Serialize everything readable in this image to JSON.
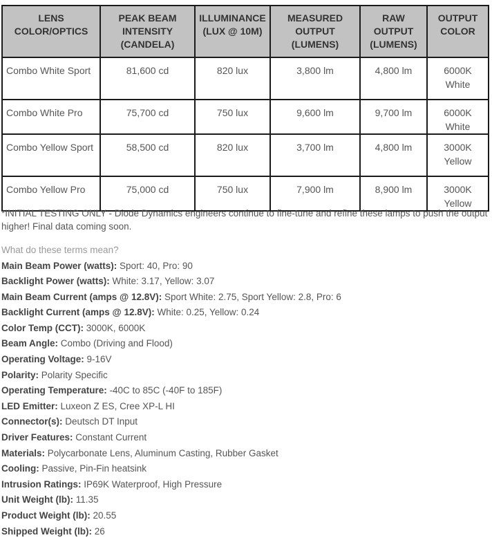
{
  "table": {
    "headers": [
      "LENS COLOR/OPTICS",
      "PEAK BEAM INTENSITY (CANDELA)",
      "ILLUMINANCE (LUX @ 10M)",
      "MEASURED OUTPUT (LUMENS)",
      "RAW OUTPUT (LUMENS)",
      "OUTPUT COLOR"
    ],
    "rows": [
      [
        "Combo White Sport",
        "81,600 cd",
        "820 lux",
        "3,800 lm",
        "4,800 lm",
        "6000K White"
      ],
      [
        "Combo White Pro",
        "75,700 cd",
        "750 lux",
        "9,600 lm",
        "9,700 lm",
        "6000K White"
      ],
      [
        "Combo Yellow Sport",
        "58,500 cd",
        "820 lux",
        "3,700 lm",
        "4,800 lm",
        "3000K Yellow"
      ],
      [
        "Combo Yellow Pro",
        "75,000 cd",
        "750 lux",
        "7,900 lm",
        "8,900 lm",
        "3000K Yellow"
      ]
    ]
  },
  "note": "*INITIAL TESTING ONLY - Diode Dynamics engineers continue to fine-tune and refine these lamps to push the output higher! Final data coming soon.",
  "terms_link": "What do these terms mean?",
  "specs": [
    {
      "label": "Main Beam Power (watts):",
      "value": " Sport: 40, Pro: 90"
    },
    {
      "label": "Backlight Power (watts):",
      "value": " White: 3.17, Yellow: 3.07"
    },
    {
      "label": "Main Beam Current (amps @ 12.8V):",
      "value": " Sport White: 2.75, Sport Yellow: 2.8, Pro: 6"
    },
    {
      "label": "Backlight Current (amps @ 12.8V):",
      "value": " White: 0.25, Yellow: 0.24"
    },
    {
      "label": "Color Temp (CCT):",
      "value": " 3000K, 6000K"
    },
    {
      "label": "Beam Angle:",
      "value": " Combo (Driving and Flood)"
    },
    {
      "label": "Operating Voltage:",
      "value": " 9-16V"
    },
    {
      "label": "Polarity:",
      "value": " Polarity Specific"
    },
    {
      "label": "Operating Temperature:",
      "value": " -40C to 85C (-40F to 185F)"
    },
    {
      "label": "LED Emitter:",
      "value": " Luxeon Z ES, Cree XP-L HI"
    },
    {
      "label": "Connector(s):",
      "value": " Deutsch DT Input"
    },
    {
      "label": "Driver Features:",
      "value": " Constant Current"
    },
    {
      "label": "Materials:",
      "value": " Polycarbonate Lens, Aluminum Casting, Rubber Gasket"
    },
    {
      "label": "Cooling:",
      "value": " Passive, Pin-Fin heatsink"
    },
    {
      "label": "Intrusion Ratings:",
      "value": " IP69K Waterproof, High Pressure"
    },
    {
      "label": "Unit Weight (lb):",
      "value": " 11.35"
    },
    {
      "label": "Product Weight (lb):",
      "value": " 20.55"
    },
    {
      "label": "Shipped Weight (lb):",
      "value": " 26"
    }
  ]
}
